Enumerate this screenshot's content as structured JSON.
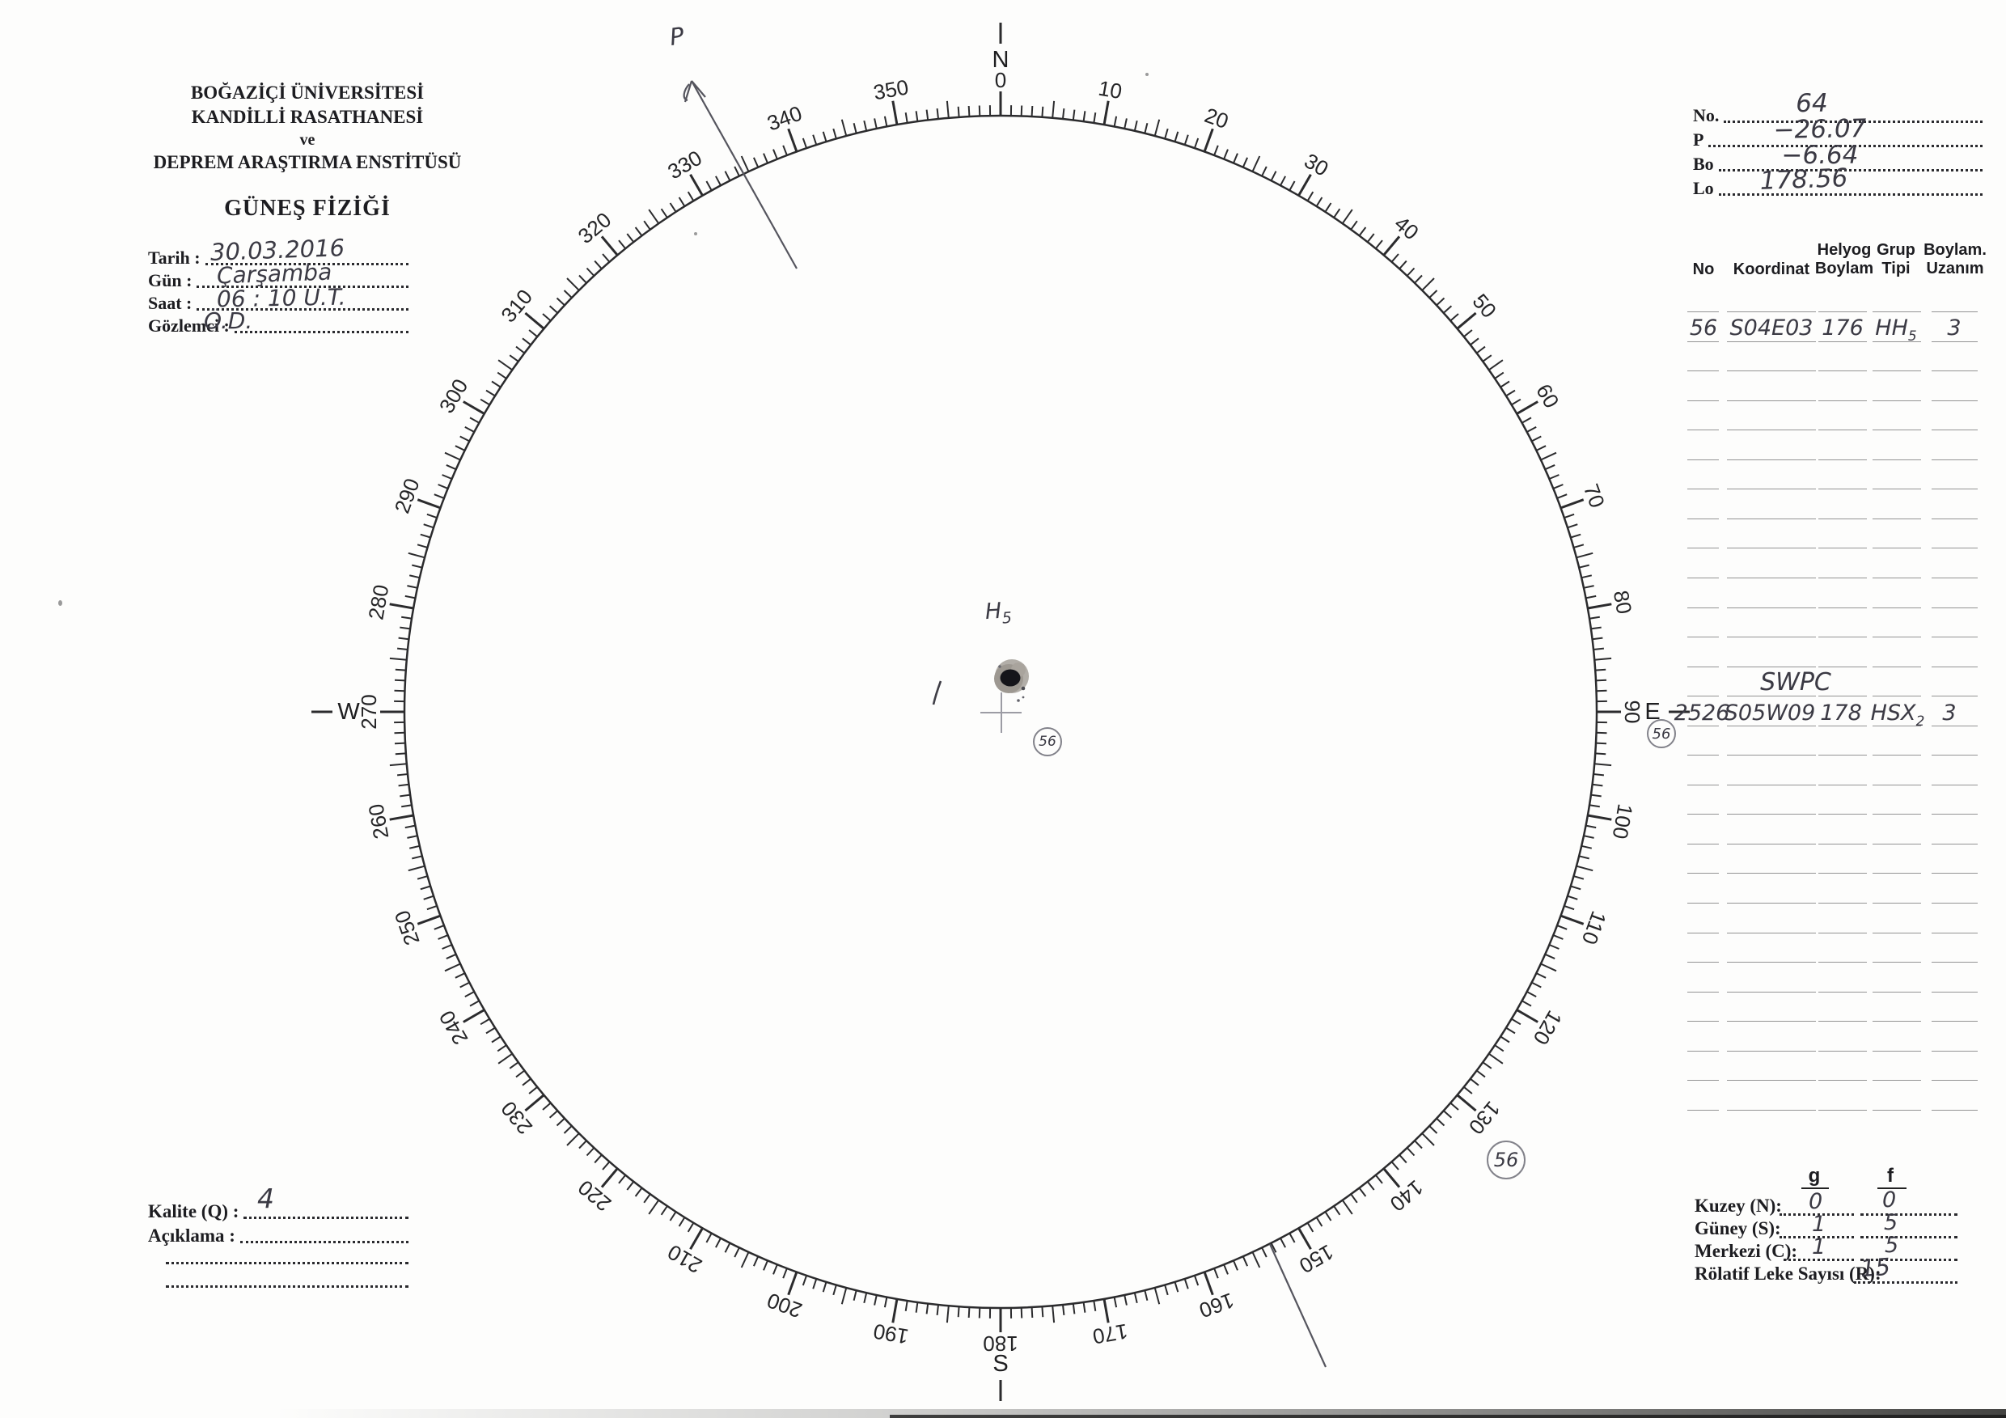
{
  "institution": {
    "line1": "BOĞAZİÇİ ÜNİVERSİTESİ",
    "line2": "KANDİLLİ RASATHANESİ",
    "line3": "ve",
    "line4": "DEPREM ARAŞTIRMA ENSTİTÜSÜ",
    "form_title": "GÜNEŞ FİZİĞİ"
  },
  "obs_form": {
    "fields": [
      {
        "label": "Tarih :",
        "value": "30.03.2016"
      },
      {
        "label": "Gün :",
        "value": "Çarşamba"
      },
      {
        "label": "Saat :",
        "value": "06 : 10 U.T."
      },
      {
        "label": "Gözlemci :",
        "value": "Ö.D."
      }
    ]
  },
  "ephemeris": {
    "fields": [
      {
        "label": "No.",
        "value": "64"
      },
      {
        "label": "P",
        "value": "−26.07"
      },
      {
        "label": "Bo",
        "value": "−6.64"
      },
      {
        "label": "Lo",
        "value": "178.56"
      }
    ]
  },
  "group_table": {
    "headers": [
      "No",
      "Koordinat",
      "Helyog\nBoylam",
      "Grup\nTipi",
      "Boylam.\nUzanım"
    ],
    "row_count": 28,
    "rows": [
      {
        "no": "56",
        "koordinat": "S04E03",
        "helyog_boylam": "176",
        "grup_tipi_base": "HH",
        "grup_tipi_sub": "5",
        "boylam_uzanim": "3"
      },
      {
        "no": "2526",
        "koordinat": "S05W09",
        "helyog_boylam": "178",
        "grup_tipi_base": "HSX",
        "grup_tipi_sub": "2",
        "boylam_uzanim": "3",
        "side_mark": "56"
      }
    ],
    "swpc_note": "SWPC"
  },
  "counts": {
    "col_g": "g",
    "col_f": "f",
    "rows": [
      {
        "label": "Kuzey (N):",
        "g": "0",
        "f": "0"
      },
      {
        "label": "Güney (S):",
        "g": "1",
        "f": "5"
      },
      {
        "label": "Merkezi (C):",
        "g": "1",
        "f": "5"
      }
    ],
    "relative": {
      "label": "Rölatif Leke Sayısı (R):",
      "value": "15"
    }
  },
  "quality": {
    "label": "Kalite (Q) :",
    "value": "4",
    "note_label": "Açıklama :"
  },
  "dial": {
    "cardinals": {
      "north": "N",
      "east": "E",
      "south": "S",
      "west": "W"
    },
    "degree_labels": [
      "0",
      "10",
      "20",
      "30",
      "40",
      "50",
      "60",
      "70",
      "80",
      "90",
      "100",
      "110",
      "120",
      "130",
      "140",
      "150",
      "160",
      "170",
      "180",
      "190",
      "200",
      "210",
      "220",
      "230",
      "240",
      "250",
      "260",
      "270",
      "280",
      "290",
      "300",
      "310",
      "320",
      "330",
      "340",
      "350"
    ]
  },
  "annotations": {
    "group_label_base": "H",
    "group_label_sub": "5",
    "center_circled": "56",
    "outer_circled": "56",
    "p_axis_label": "P"
  }
}
